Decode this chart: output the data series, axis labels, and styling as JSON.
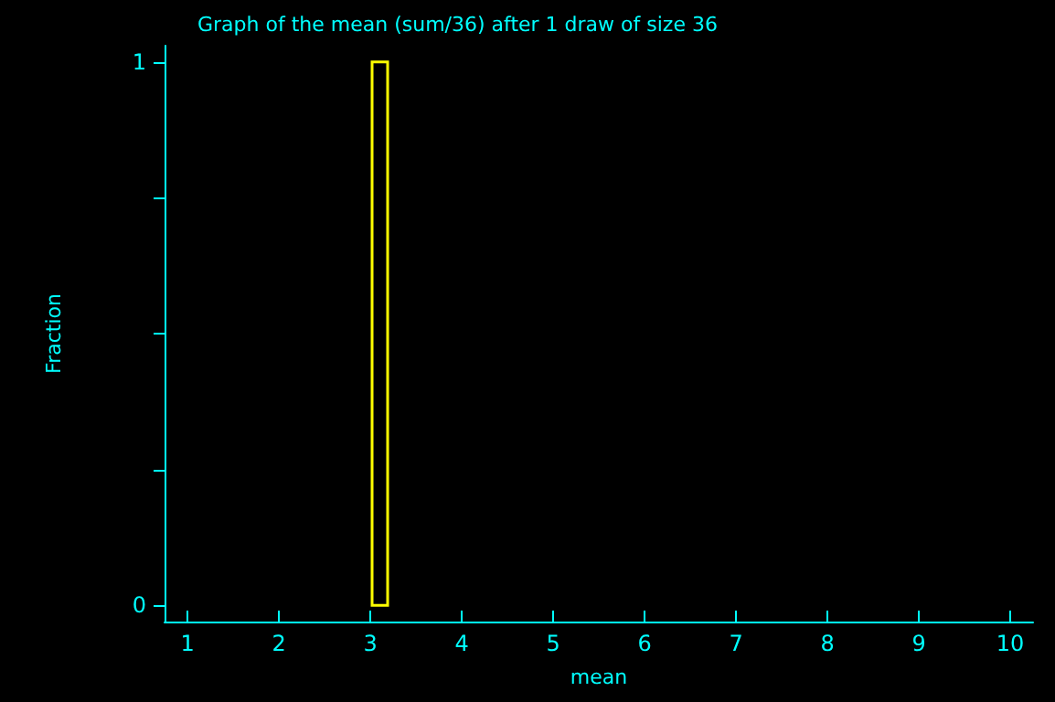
{
  "chart_data": {
    "type": "histogram",
    "title": "Graph of the mean (sum/36) after 1 draw of size 36",
    "xlabel": "mean",
    "ylabel": "Fraction",
    "bins": [
      3.02,
      3.19
    ],
    "values": [
      1
    ],
    "color": "#ffff00",
    "xlim": [
      0.75,
      10.25
    ],
    "xticks": [
      1,
      2,
      3,
      4,
      5,
      6,
      7,
      8,
      9,
      10
    ],
    "ylim": [
      -0.03,
      1.03
    ],
    "yticks": [
      0,
      {
        "value": 0.25,
        "label": null
      },
      {
        "value": 0.5,
        "label": null
      },
      {
        "value": 0.75,
        "label": null
      },
      1
    ],
    "grid": false
  }
}
